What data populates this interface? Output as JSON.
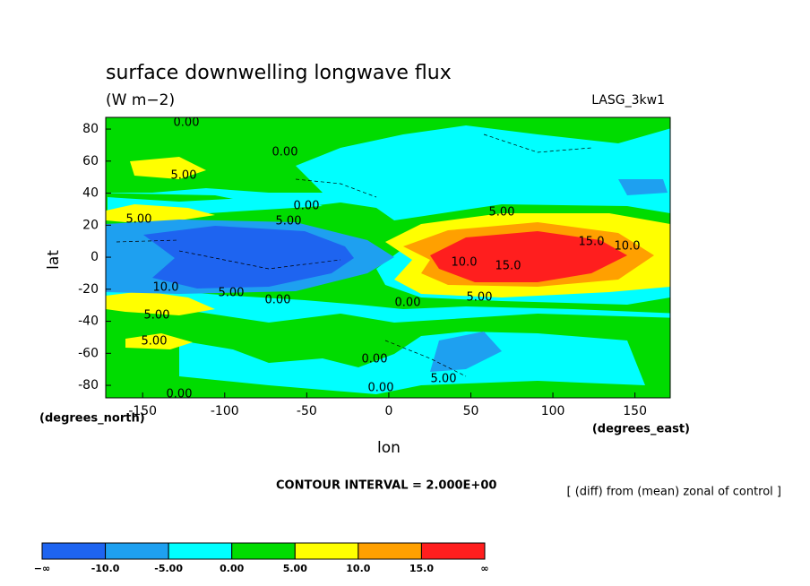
{
  "chart_data": {
    "type": "contour",
    "title": "surface downwelling longwave flux",
    "subtitle": "(W m−2)",
    "source": "LASG_3kw1",
    "x_label": "lon",
    "y_label": "lat",
    "x_unit": "(degrees_east)",
    "y_unit": "(degrees_north)",
    "xlim": [
      -172.5,
      171.5
    ],
    "ylim": [
      -87.8,
      87.3
    ],
    "xticks": [
      -150,
      -100,
      -50,
      0,
      50,
      100,
      150
    ],
    "yticks": [
      80,
      60,
      40,
      20,
      0,
      -20,
      -40,
      -60,
      -80
    ],
    "contour_interval": "CONTOUR INTERVAL = 2.000E+00",
    "note": "[ (diff) from (mean) zonal of control ]",
    "contour_labels": [
      "0.00",
      "0.00",
      "5.00",
      "0.00",
      "5.00",
      "5.00",
      "5.00",
      "10.0",
      "5.00",
      "0.00",
      "5.00",
      "5.00",
      "0.00",
      "5.00",
      "10.0",
      "15.0",
      "15.0",
      "10.0",
      "0.00",
      "5.00",
      "0.00",
      "0.00"
    ],
    "colorbar": {
      "colors": [
        "#1e64f0",
        "#1ea0f0",
        "#00ffff",
        "#00dc00",
        "#ffff00",
        "#ffa000",
        "#ff1e1e"
      ],
      "labels": [
        "−∞",
        "-10.0",
        "-5.00",
        "0.00",
        "5.00",
        "10.0",
        "15.0",
        "∞"
      ]
    }
  }
}
